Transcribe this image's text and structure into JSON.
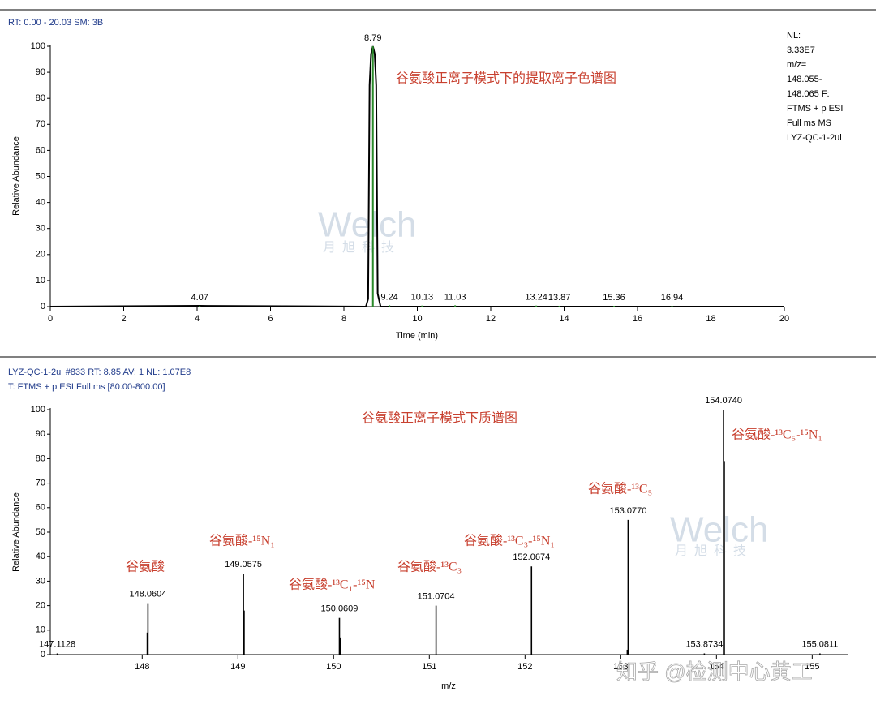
{
  "chart_data": [
    {
      "type": "line",
      "header": "RT: 0.00 - 20.03  SM: 3B",
      "title": "谷氨酸正离子模式下的提取离子色谱图",
      "xlabel": "Time (min)",
      "ylabel": "Relative Abundance",
      "info": [
        "NL:",
        "3.33E7",
        "m/z=",
        "148.055-",
        "148.065  F:",
        "FTMS + p ESI",
        "Full ms  MS",
        "LYZ-QC-1-2ul"
      ],
      "x": [
        0,
        4.07,
        8.6,
        8.66,
        8.7,
        8.74,
        8.79,
        8.84,
        8.88,
        8.92,
        9.0,
        20
      ],
      "values": [
        0,
        0.3,
        0,
        3,
        85,
        97,
        100,
        97,
        85,
        5,
        0,
        0
      ],
      "peaks": {
        "x": [
          4.07,
          8.79,
          9.24,
          10.13,
          11.03,
          13.24,
          13.87,
          15.36,
          16.94
        ],
        "values": [
          0.3,
          100,
          0.5,
          0.4,
          0.5,
          0.4,
          0.3,
          0.3,
          0.3
        ]
      },
      "color": "#000000",
      "xlim": [
        0,
        20
      ],
      "xticks": [
        0,
        2,
        4,
        6,
        8,
        10,
        12,
        14,
        16,
        18,
        20
      ],
      "ylim": [
        0,
        100
      ],
      "yticks": [
        0,
        10,
        20,
        30,
        40,
        50,
        60,
        70,
        80,
        90,
        100
      ]
    },
    {
      "type": "stick",
      "header": [
        "LYZ-QC-1-2ul #833  RT: 8.85  AV: 1  NL: 1.07E8",
        "T: FTMS + p ESI Full ms [80.00-800.00]"
      ],
      "title": "谷氨酸正离子模式下质谱图",
      "xlabel": "m/z",
      "ylabel": "Relative Abundance",
      "x": [
        147.1128,
        148.0604,
        149.0575,
        150.0609,
        151.0704,
        152.0674,
        153.077,
        153.8734,
        154.074,
        155.0811
      ],
      "x_labels": [
        "147.1128",
        "148.0604",
        "149.0575",
        "150.0609",
        "151.0704",
        "152.0674",
        "153.0770",
        "153.8734",
        "154.0740",
        "155.0811"
      ],
      "values": [
        0.5,
        21,
        33,
        15,
        20,
        36,
        55,
        0.5,
        100,
        0.5
      ],
      "shoulders": {
        "x": [
          148.055,
          149.063,
          150.066,
          153.07,
          154.08
        ],
        "values": [
          9,
          18,
          7,
          2,
          79
        ]
      },
      "annotations": [
        "谷氨酸",
        "谷氨酸-¹⁵N₁",
        "谷氨酸-¹³C₁-¹⁵N",
        "谷氨酸-¹³C₃",
        "谷氨酸-¹³C₃-¹⁵N₁",
        "谷氨酸-¹³C₅",
        "谷氨酸-¹³C₅-¹⁵N₁"
      ],
      "color": "#000000",
      "xlim": [
        147.04,
        155.37
      ],
      "xticks": [
        148,
        149,
        150,
        151,
        152,
        153,
        154,
        155
      ],
      "ylim": [
        0,
        100
      ],
      "yticks": [
        0,
        10,
        20,
        30,
        40,
        50,
        60,
        70,
        80,
        90,
        100
      ]
    }
  ],
  "watermarks": {
    "logo": "Welch",
    "logo_sub": "月旭科技",
    "credit": "知乎 @检测中心黄工"
  }
}
